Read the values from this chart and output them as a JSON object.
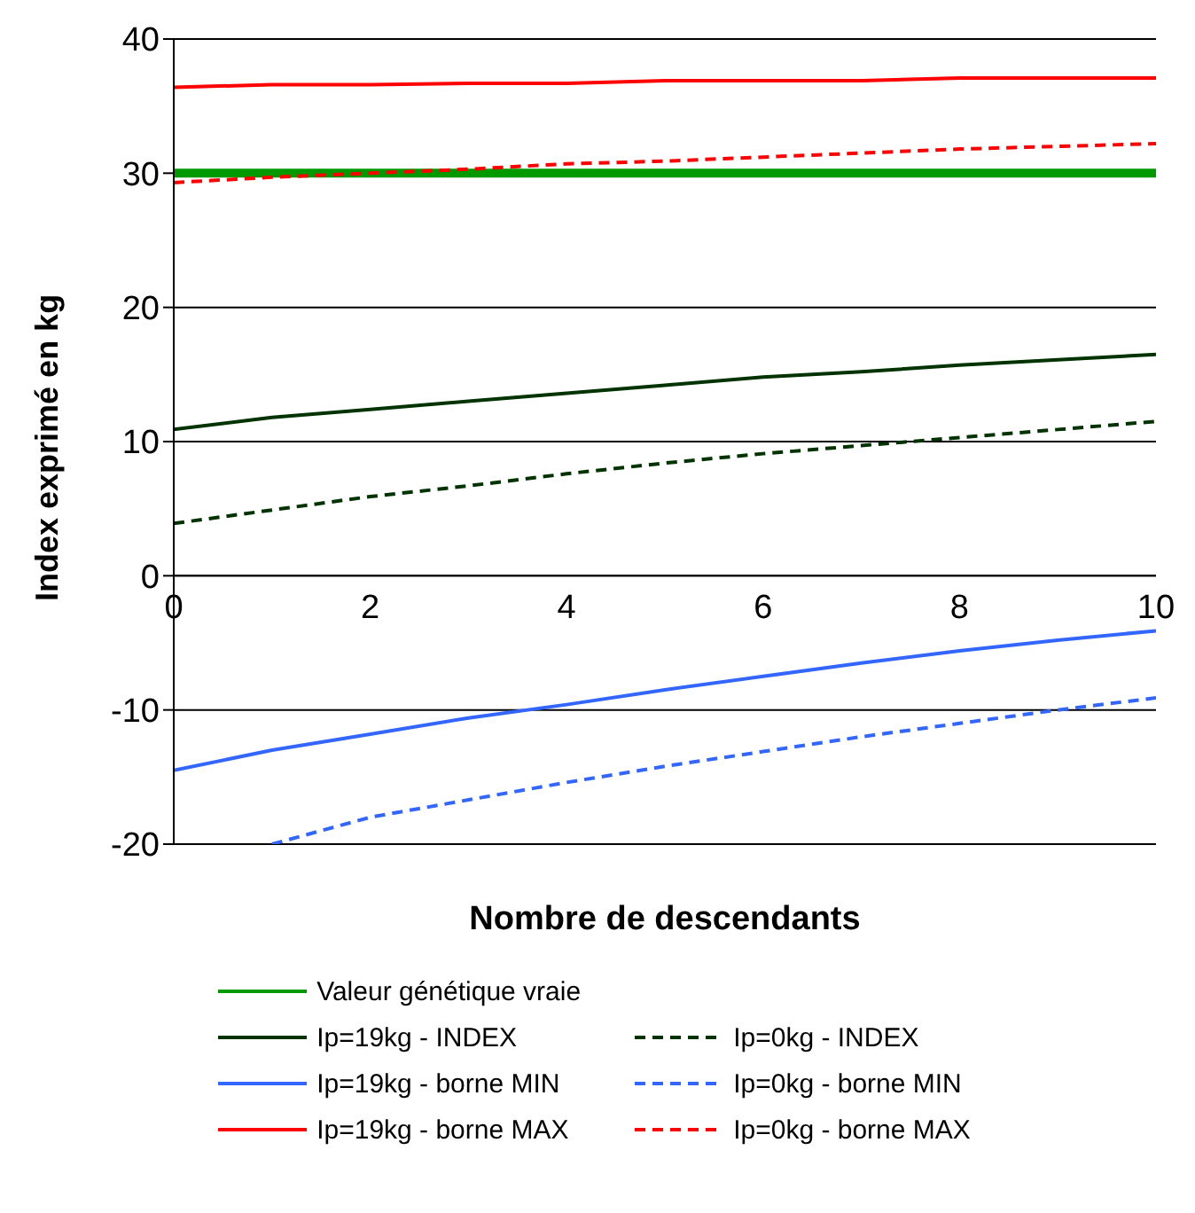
{
  "chart_data": {
    "type": "line",
    "xlabel": "Nombre de descendants",
    "ylabel": "Index exprimé en kg",
    "x": [
      0,
      1,
      2,
      3,
      4,
      5,
      6,
      7,
      8,
      9,
      10
    ],
    "xlim": [
      0,
      10
    ],
    "xticks": [
      0,
      2,
      4,
      6,
      8,
      10
    ],
    "ylim": [
      -20,
      40
    ],
    "yticks": [
      -20,
      -10,
      0,
      10,
      20,
      30,
      40
    ],
    "grid": "y",
    "legend": "bottom",
    "marker": "none",
    "series": [
      {
        "name": "Valeur génétique vraie",
        "color": "#009900",
        "line_style": "solid",
        "values": [
          30,
          30,
          30,
          30,
          30,
          30,
          30,
          30,
          30,
          30,
          30
        ]
      },
      {
        "name": "Ip=19kg - INDEX",
        "color": "#003300",
        "line_style": "solid",
        "values": [
          10.9,
          11.8,
          12.4,
          13,
          13.6,
          14.2,
          14.8,
          15.2,
          15.7,
          16.1,
          16.5
        ]
      },
      {
        "name": "Ip=19kg - borne MIN",
        "color": "#3366ff",
        "line_style": "solid",
        "values": [
          -14.5,
          -13,
          -11.8,
          -10.6,
          -9.6,
          -8.5,
          -7.5,
          -6.5,
          -5.6,
          -4.8,
          -4.1
        ]
      },
      {
        "name": "Ip=19kg - borne MAX",
        "color": "#ff0000",
        "line_style": "solid",
        "values": [
          36.4,
          36.6,
          36.6,
          36.7,
          36.7,
          36.9,
          36.9,
          36.9,
          37.1,
          37.1,
          37.1
        ]
      },
      {
        "name": "Ip=0kg - INDEX",
        "color": "#003300",
        "line_style": "dashed",
        "values": [
          3.9,
          4.9,
          5.9,
          6.7,
          7.6,
          8.4,
          9.1,
          9.7,
          10.3,
          10.9,
          11.5
        ]
      },
      {
        "name": "Ip=0kg - borne MIN",
        "color": "#3366ff",
        "line_style": "dashed",
        "values": [
          null,
          -20,
          -18,
          -16.7,
          -15.4,
          -14.2,
          -13.1,
          -12,
          -11,
          -10,
          -9.1
        ]
      },
      {
        "name": "Ip=0kg - borne MAX",
        "color": "#ff0000",
        "line_style": "dashed",
        "values": [
          29.3,
          29.7,
          30,
          30.3,
          30.7,
          30.9,
          31.2,
          31.5,
          31.8,
          32,
          32.2
        ]
      }
    ]
  }
}
